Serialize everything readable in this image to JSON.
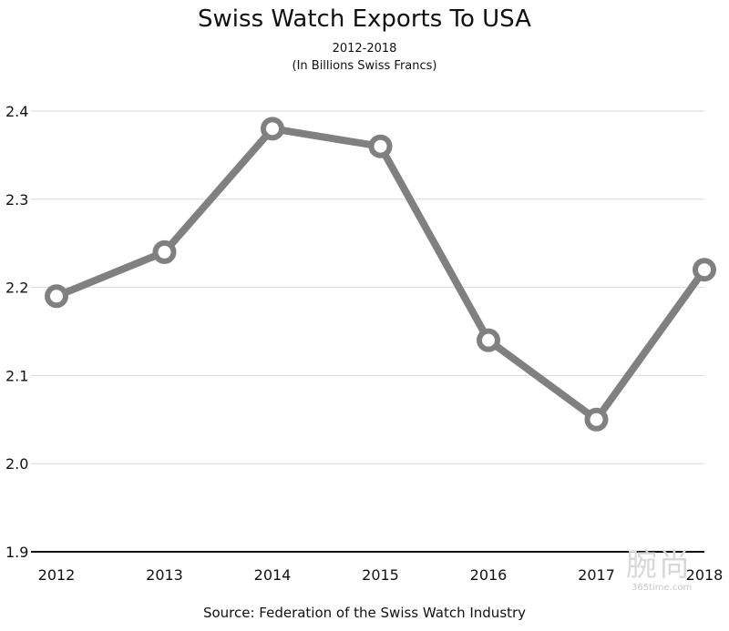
{
  "chart_data": {
    "type": "line",
    "title": "Swiss Watch Exports To USA",
    "subtitle": [
      "2012-2018",
      "(In Billions Swiss Francs)"
    ],
    "x": [
      "2012",
      "2013",
      "2014",
      "2015",
      "2016",
      "2017",
      "2018"
    ],
    "series": [
      {
        "values": [
          2.19,
          2.24,
          2.38,
          2.36,
          2.14,
          2.05,
          2.22
        ]
      }
    ],
    "yticks": [
      "1.9",
      "2.0",
      "2.1",
      "2.2",
      "2.3",
      "2.4"
    ],
    "ylim": [
      1.9,
      2.4
    ],
    "grid": true,
    "line_color": "#808080",
    "source": "Source: Federation of the Swiss Watch Industry"
  },
  "watermark": {
    "logo": "腕尚",
    "url": "365time.com"
  }
}
